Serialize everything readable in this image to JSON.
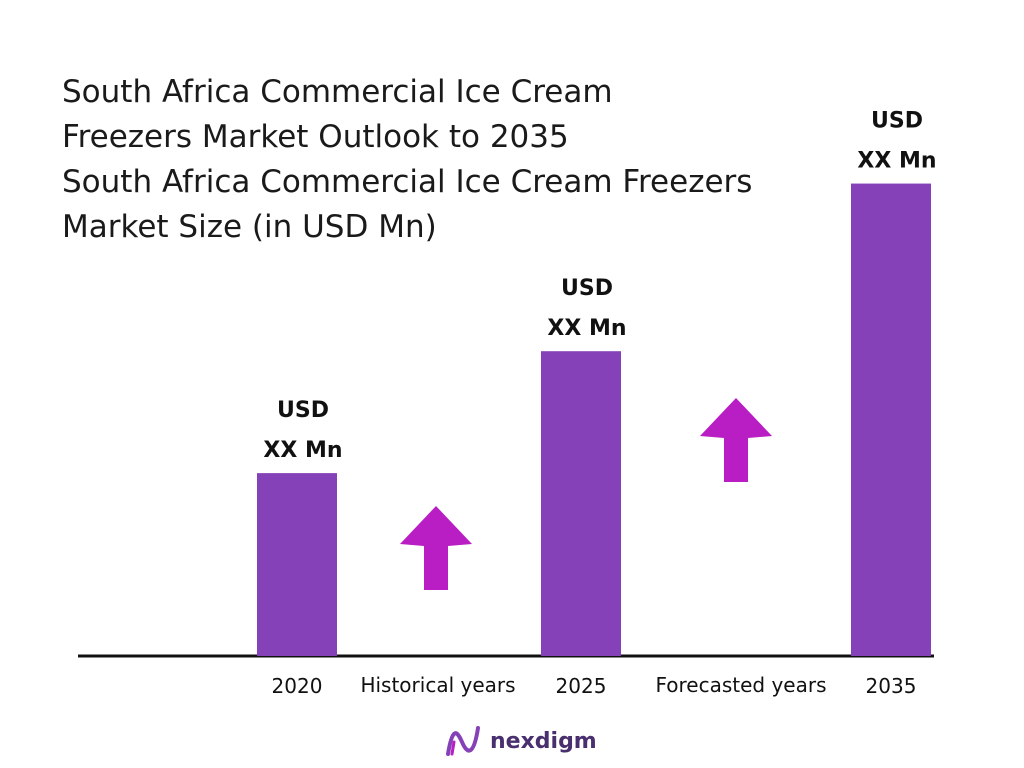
{
  "title_lines": [
    "South Africa Commercial Ice Cream",
    "Freezers Market Outlook to 2035",
    "South Africa Commercial Ice Cream Freezers",
    "Market Size (in USD Mn)"
  ],
  "colors": {
    "bar": "#8542b8",
    "arrow": "#b81ec4",
    "axis": "#111111",
    "logo_mark": "#8542b8",
    "logo_text": "#4a2f6e"
  },
  "chart_data": {
    "type": "bar",
    "categories": [
      "2020",
      "2025",
      "2035"
    ],
    "values": [
      36,
      60,
      93
    ],
    "ylim": [
      0,
      100
    ],
    "data_labels": [
      [
        "USD",
        "XX Mn"
      ],
      [
        "USD",
        "XX Mn"
      ],
      [
        "USD",
        "XX Mn"
      ]
    ],
    "period_labels": [
      "Historical years",
      "Forecasted years"
    ],
    "title": "",
    "xlabel": "",
    "ylabel": ""
  },
  "logo": {
    "text": "nexdigm",
    "icon": "nexdigm-logo-icon"
  }
}
